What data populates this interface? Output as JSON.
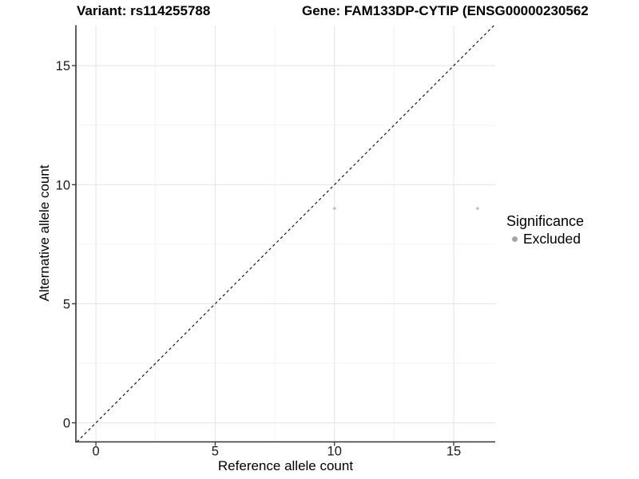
{
  "chart_data": {
    "type": "scatter",
    "title_variant": "Variant: rs114255788",
    "title_gene": "Gene: FAM133DP-CYTIP (ENSG00000230562",
    "xlabel": "Reference allele count",
    "ylabel": "Alternative allele count",
    "series": [
      {
        "name": "Excluded",
        "color": "#c6c6c6",
        "point_radius": 1.9,
        "points": [
          {
            "x": 10,
            "y": 9
          },
          {
            "x": 16,
            "y": 9
          }
        ]
      }
    ],
    "identity_line": {
      "slope": 1,
      "intercept": 0,
      "style": "dashed",
      "color": "#1a1a1a"
    },
    "axes": {
      "xticks": [
        0,
        5,
        10,
        15
      ],
      "yticks": [
        0,
        5,
        10,
        15
      ],
      "xminor": [
        2.5,
        7.5,
        12.5
      ],
      "yminor": [
        2.5,
        7.5,
        12.5
      ],
      "xlim": [
        -0.84,
        16.74
      ],
      "ylim": [
        -0.8,
        16.7
      ]
    },
    "grid": {
      "major_color": "#e4e4e4",
      "minor_color": "#f0f0f0",
      "background": "#ffffff"
    },
    "axis_color": "#333333",
    "tick_color": "#333333",
    "tick_label_color": "#1a1a1a",
    "legend": {
      "title": "Significance",
      "position": "right",
      "items": [
        {
          "label": "Excluded",
          "color": "#a6a6a6"
        }
      ]
    }
  }
}
